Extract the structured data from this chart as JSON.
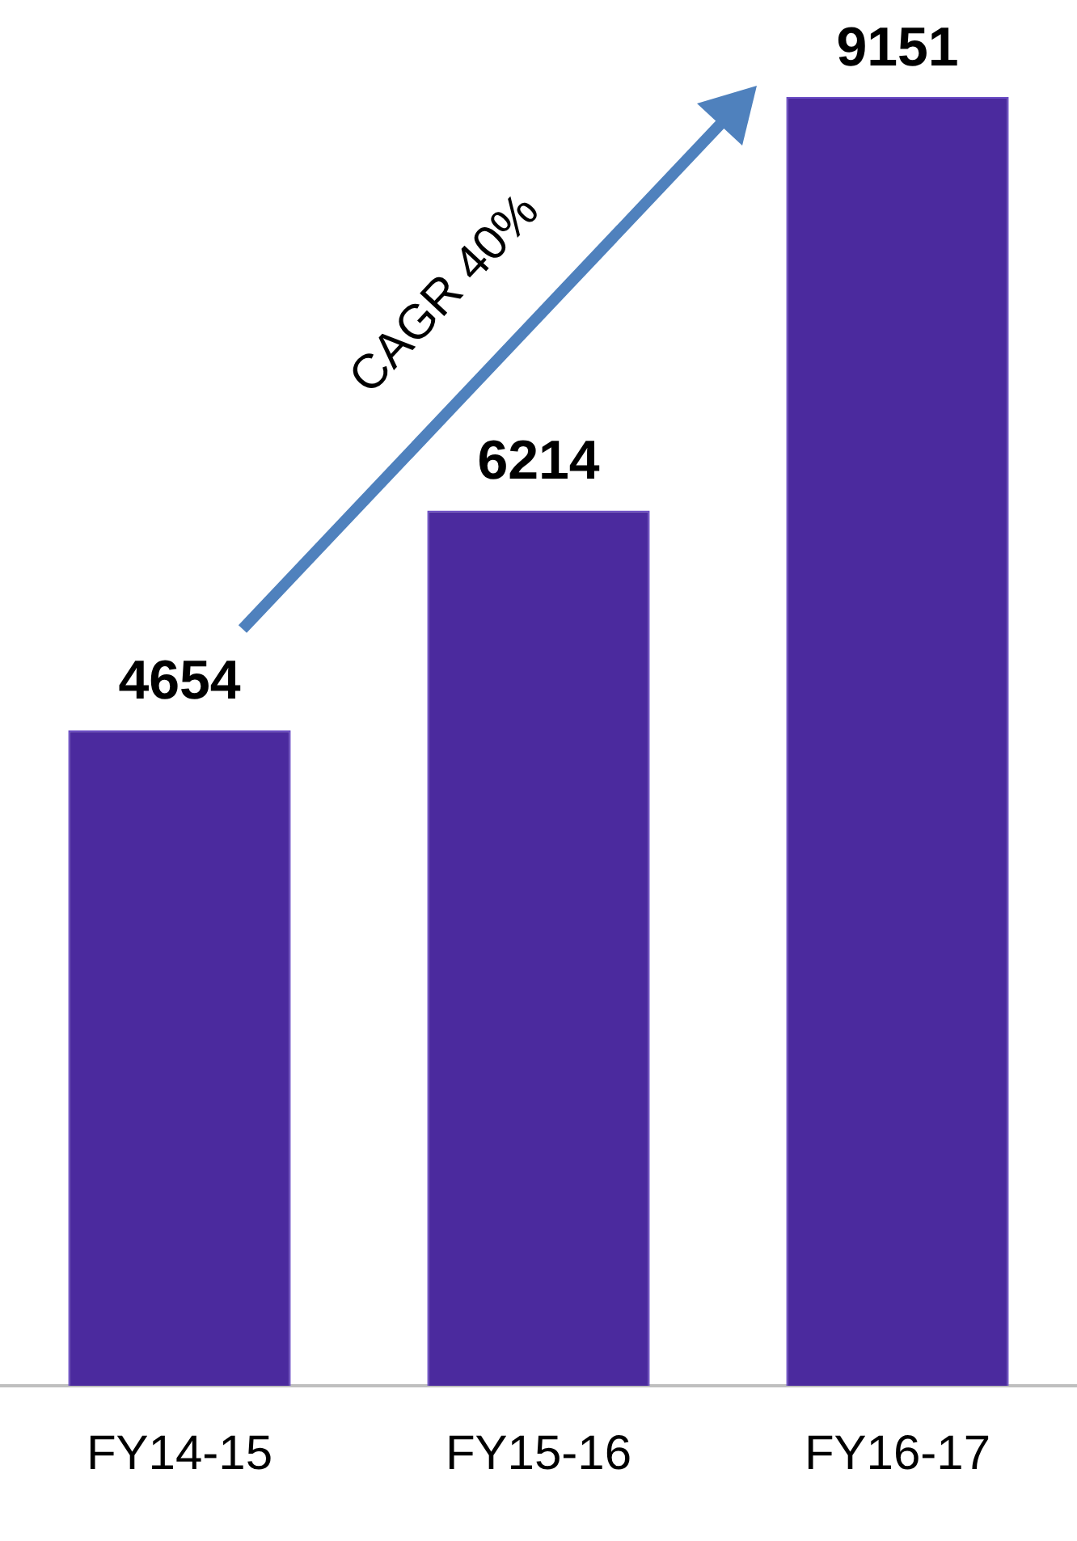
{
  "chart_data": {
    "type": "bar",
    "categories": [
      "FY14-15",
      "FY15-16",
      "FY16-17"
    ],
    "values": [
      4654,
      6214,
      9151
    ],
    "color": "#4b2a9e",
    "data_labels": true,
    "grid": false,
    "legend": false,
    "tick_labels": "x",
    "annotations": [
      "CAGR 40%"
    ]
  }
}
